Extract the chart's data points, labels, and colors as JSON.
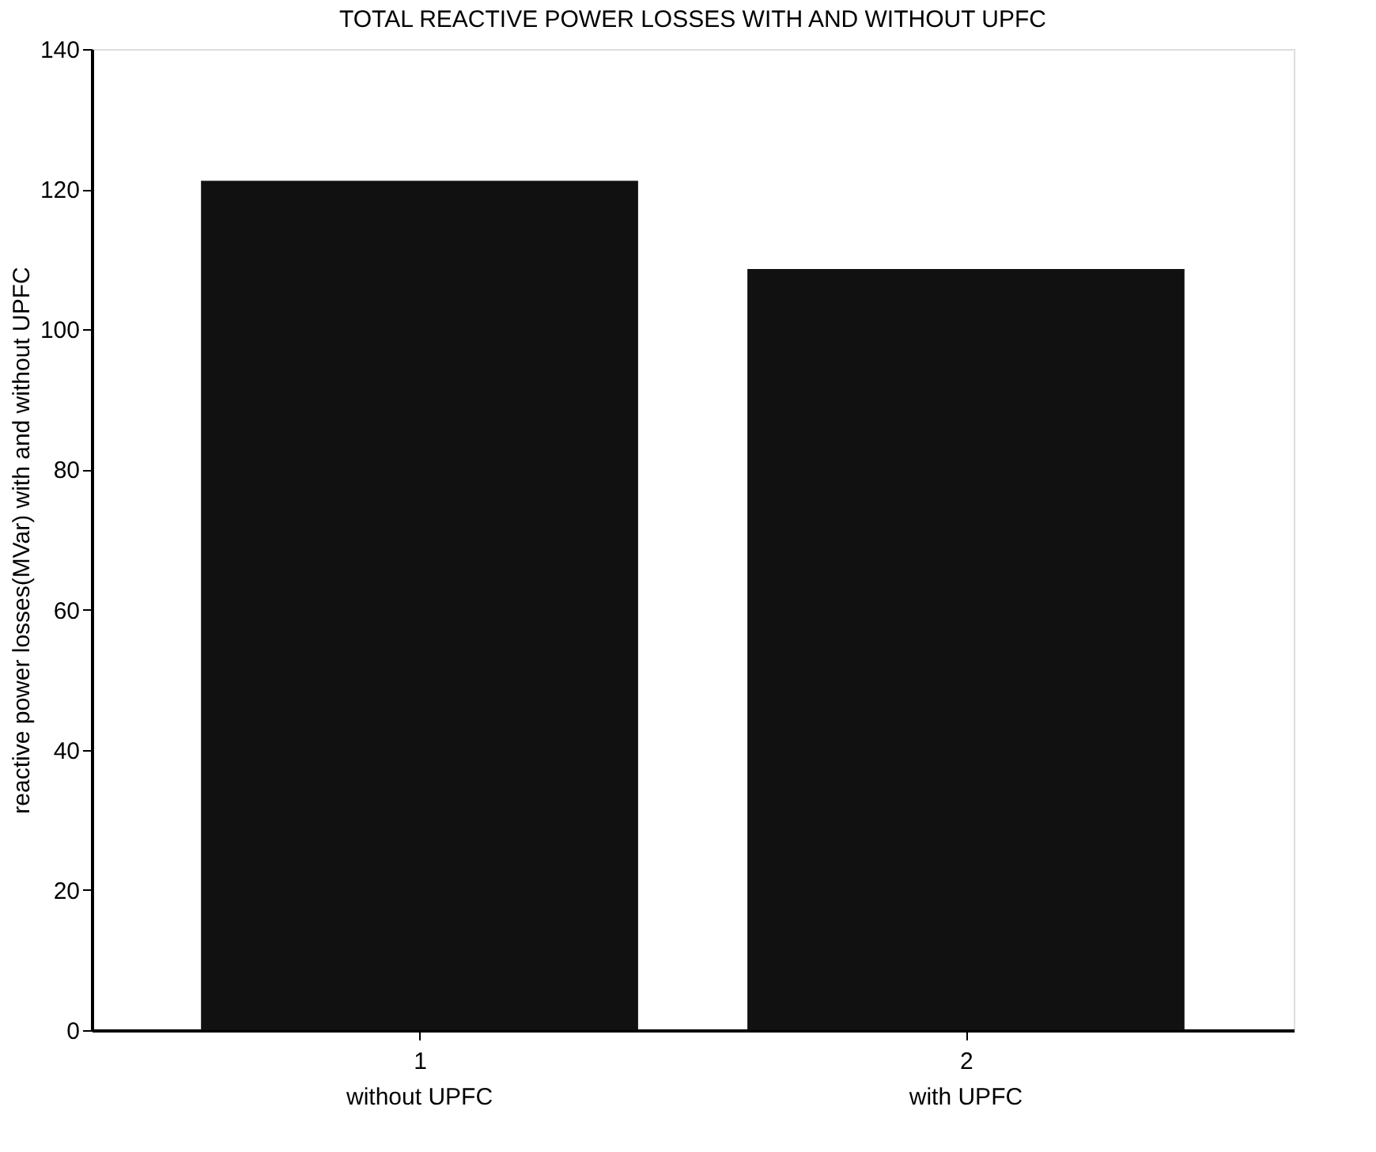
{
  "chart_data": {
    "type": "bar",
    "title": "TOTAL REACTIVE POWER LOSSES WITH AND WITHOUT UPFC",
    "ylabel": "reactive power losses(MVar) with and without UPFC",
    "x": [
      1,
      2
    ],
    "values": [
      121.2,
      108.6
    ],
    "color": "#111111",
    "xlim": [
      0.4,
      2.6
    ],
    "xticks": [
      1,
      2
    ],
    "ylim": [
      0,
      140
    ],
    "yticks": [
      0,
      20,
      40,
      60,
      80,
      100,
      120,
      140
    ],
    "grid": false,
    "annotations": [
      "without UPFC",
      "with UPFC"
    ]
  }
}
